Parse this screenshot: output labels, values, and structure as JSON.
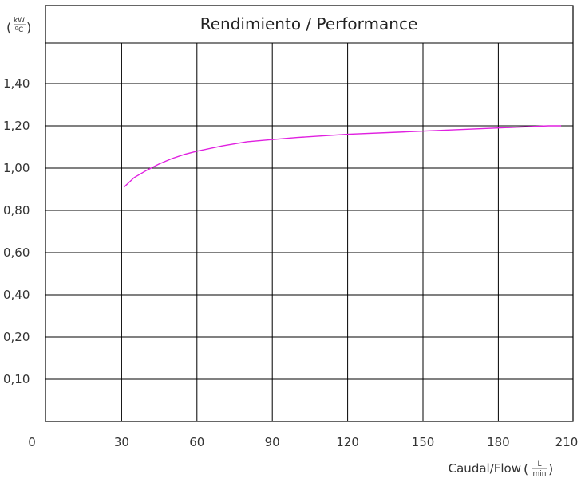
{
  "chart_data": {
    "type": "line",
    "title": "Rendimiento / Performance",
    "xlabel": "Caudal/Flow",
    "x_unit_num": "L",
    "x_unit_den": "min",
    "y_unit_num": "kW",
    "y_unit_den": "ºC",
    "x_tick_labels": [
      "0",
      "30",
      "60",
      "90",
      "120",
      "150",
      "180",
      "210"
    ],
    "y_tick_labels": [
      "0,10",
      "0,20",
      "0,40",
      "0,60",
      "0,80",
      "1,00",
      "1,20",
      "1,40"
    ],
    "grid": true,
    "line_color": "#e020e0",
    "series": [
      {
        "x": [
          31,
          35,
          40,
          45,
          50,
          55,
          60,
          70,
          80,
          90,
          100,
          120,
          140,
          160,
          180,
          200,
          205
        ],
        "y": [
          0.91,
          0.955,
          0.99,
          1.02,
          1.045,
          1.065,
          1.08,
          1.105,
          1.125,
          1.135,
          1.145,
          1.16,
          1.17,
          1.18,
          1.19,
          1.2,
          1.2
        ]
      }
    ]
  }
}
